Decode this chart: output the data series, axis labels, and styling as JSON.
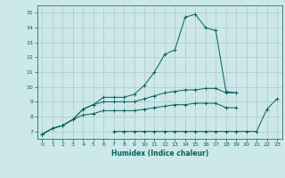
{
  "xlabel": "Humidex (Indice chaleur)",
  "background_color": "#cce8e8",
  "grid_color": "#b0c8c8",
  "line_color": "#006060",
  "xlim": [
    -0.5,
    23.5
  ],
  "ylim": [
    6.5,
    15.5
  ],
  "xticks": [
    0,
    1,
    2,
    3,
    4,
    5,
    6,
    7,
    8,
    9,
    10,
    11,
    12,
    13,
    14,
    15,
    16,
    17,
    18,
    19,
    20,
    21,
    22,
    23
  ],
  "yticks": [
    7,
    8,
    9,
    10,
    11,
    12,
    13,
    14,
    15
  ],
  "curves": [
    {
      "x": [
        0,
        1,
        2,
        3,
        4,
        5,
        6,
        7,
        8,
        9,
        10,
        11,
        12,
        13,
        14,
        15,
        16,
        17,
        18,
        19,
        20,
        21,
        22,
        23
      ],
      "y": [
        6.8,
        7.2,
        7.4,
        7.8,
        8.5,
        8.8,
        9.3,
        9.3,
        9.3,
        9.5,
        10.1,
        11.0,
        12.2,
        12.5,
        14.7,
        14.9,
        14.0,
        13.8,
        9.7,
        9.6,
        null,
        null,
        null,
        null
      ]
    },
    {
      "x": [
        0,
        1,
        2,
        3,
        4,
        5,
        6,
        7,
        8,
        9,
        10,
        11,
        12,
        13,
        14,
        15,
        16,
        17,
        18,
        19,
        20,
        21,
        22,
        23
      ],
      "y": [
        6.8,
        7.2,
        7.4,
        7.8,
        8.5,
        8.8,
        9.0,
        9.0,
        9.0,
        9.0,
        9.2,
        9.4,
        9.6,
        9.7,
        9.8,
        9.8,
        9.9,
        9.9,
        9.6,
        9.6,
        null,
        null,
        null,
        null
      ]
    },
    {
      "x": [
        0,
        1,
        2,
        3,
        4,
        5,
        6,
        7,
        8,
        9,
        10,
        11,
        12,
        13,
        14,
        15,
        16,
        17,
        18,
        19,
        20,
        21,
        22,
        23
      ],
      "y": [
        6.8,
        7.2,
        7.4,
        7.8,
        8.1,
        8.2,
        8.4,
        8.4,
        8.4,
        8.4,
        8.5,
        8.6,
        8.7,
        8.8,
        8.8,
        8.9,
        8.9,
        8.9,
        8.6,
        8.6,
        null,
        null,
        null,
        null
      ]
    },
    {
      "x": [
        0,
        1,
        2,
        3,
        4,
        5,
        6,
        7,
        8,
        9,
        10,
        11,
        12,
        13,
        14,
        15,
        16,
        17,
        18,
        19,
        20,
        21,
        22,
        23
      ],
      "y": [
        null,
        null,
        null,
        null,
        null,
        null,
        null,
        7.0,
        7.0,
        7.0,
        7.0,
        7.0,
        7.0,
        7.0,
        7.0,
        7.0,
        7.0,
        7.0,
        7.0,
        7.0,
        7.0,
        7.0,
        8.5,
        9.2
      ]
    }
  ]
}
